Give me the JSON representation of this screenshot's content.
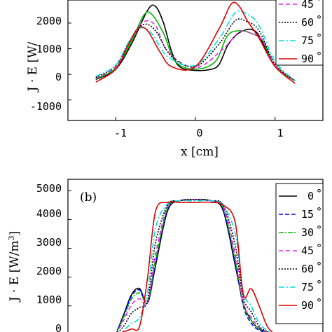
{
  "chart_data": [
    {
      "type": "line",
      "panel_label": "",
      "xlabel": "x [cm]",
      "ylabel": "J · E [W/",
      "xlim": [
        -1.6,
        1.6
      ],
      "ylim": [
        -1800,
        2900
      ],
      "xticks": [
        "-1",
        "0",
        "1"
      ],
      "yticks": [
        "-1000",
        "0",
        "1000",
        "2000"
      ],
      "legend_placement": "top-right",
      "series": [
        {
          "name": "0",
          "color": "#000000",
          "dash": "",
          "x": [
            -1.25,
            -1.0,
            -0.8,
            -0.6,
            -0.5,
            -0.4,
            -0.3,
            -0.2,
            0.0,
            0.2,
            0.3,
            0.4,
            0.5,
            0.6,
            0.7,
            0.8,
            1.0,
            1.25
          ],
          "y": [
            -200,
            200,
            1200,
            2500,
            2650,
            2000,
            900,
            300,
            150,
            200,
            400,
            1100,
            1500,
            1700,
            1750,
            1500,
            300,
            -250
          ]
        },
        {
          "name": "15",
          "color": "#0000ff",
          "dash": "6,3",
          "x": [],
          "y": []
        },
        {
          "name": "30",
          "color": "#00bb00",
          "dash": "",
          "x": [
            -1.25,
            -1.0,
            -0.8,
            -0.65,
            -0.55,
            -0.4,
            -0.25,
            0.0,
            0.25,
            0.4,
            0.55,
            0.7,
            0.85,
            1.0,
            1.25
          ],
          "y": [
            -180,
            250,
            1300,
            2300,
            2350,
            1600,
            500,
            200,
            500,
            1500,
            1700,
            1600,
            1300,
            300,
            -250
          ]
        },
        {
          "name": "45",
          "color": "#ee22ee",
          "dash": "6,4",
          "x": [
            -1.25,
            -1.0,
            -0.8,
            -0.65,
            -0.5,
            -0.35,
            0.0,
            0.35,
            0.55,
            0.7,
            0.85,
            1.0,
            1.25
          ],
          "y": [
            -150,
            300,
            1400,
            2050,
            1900,
            900,
            250,
            1000,
            1650,
            1600,
            1300,
            350,
            -250
          ]
        },
        {
          "name": "60",
          "color": "#000000",
          "dash": "2,2",
          "x": [
            -1.25,
            -1.0,
            -0.8,
            -0.65,
            -0.5,
            -0.3,
            0.0,
            0.3,
            0.5,
            0.65,
            0.8,
            1.0,
            1.25
          ],
          "y": [
            -120,
            350,
            1450,
            1950,
            1700,
            700,
            300,
            1200,
            2100,
            2050,
            1700,
            400,
            -250
          ]
        },
        {
          "name": "75",
          "color": "#00dddd",
          "dash": "8,3,2,3",
          "x": [
            -1.25,
            -1.0,
            -0.85,
            -0.7,
            -0.55,
            -0.35,
            0.0,
            0.3,
            0.5,
            0.65,
            0.8,
            1.0,
            1.25
          ],
          "y": [
            -80,
            350,
            1200,
            1800,
            1600,
            700,
            350,
            1400,
            2400,
            2350,
            1900,
            500,
            -250
          ]
        },
        {
          "name": "90",
          "color": "#dd0000",
          "dash": "",
          "x": [
            -1.25,
            -1.0,
            -0.85,
            -0.72,
            -0.6,
            -0.45,
            -0.3,
            0.0,
            0.3,
            0.45,
            0.55,
            0.65,
            0.8,
            1.0,
            1.25
          ],
          "y": [
            -300,
            200,
            1100,
            1800,
            1700,
            900,
            300,
            300,
            1800,
            2750,
            2650,
            2100,
            1400,
            300,
            -350
          ]
        }
      ]
    },
    {
      "type": "line",
      "panel_label": "(b)",
      "xlabel": "",
      "ylabel": "J · E [W/m",
      "ylabel_superscript": "3",
      "ylabel_close": "]",
      "xlim": [
        -1.6,
        1.6
      ],
      "ylim": [
        -200,
        5400
      ],
      "yticks": [
        "0",
        "1000",
        "2000",
        "3000",
        "4000",
        "5000"
      ],
      "legend_placement": "top-right",
      "series": [
        {
          "name": "0",
          "color": "#000000",
          "dash": "",
          "x": [
            -1.0,
            -0.9,
            -0.8,
            -0.7,
            -0.6,
            -0.5,
            -0.35,
            -0.2,
            0.0,
            0.2,
            0.35,
            0.5,
            0.6,
            0.7,
            0.8,
            0.9,
            1.0
          ],
          "y": [
            0,
            700,
            1400,
            1600,
            1100,
            2400,
            4300,
            4650,
            4700,
            4650,
            4300,
            2400,
            1100,
            500,
            200,
            100,
            0
          ]
        },
        {
          "name": "15",
          "color": "#0000ff",
          "dash": "6,3",
          "x": [
            -1.0,
            -0.9,
            -0.8,
            -0.7,
            -0.6,
            -0.5,
            -0.35,
            -0.2,
            0.0,
            0.2,
            0.35,
            0.5,
            0.6,
            0.7,
            0.8,
            0.9,
            1.0
          ],
          "y": [
            0,
            650,
            1350,
            1550,
            1100,
            2500,
            4350,
            4650,
            4700,
            4650,
            4350,
            2500,
            1000,
            400,
            150,
            80,
            0
          ]
        },
        {
          "name": "30",
          "color": "#00bb00",
          "dash": "7,2,2,2",
          "x": [
            -1.0,
            -0.9,
            -0.8,
            -0.7,
            -0.6,
            -0.5,
            -0.35,
            -0.2,
            0.0,
            0.2,
            0.35,
            0.5,
            0.6,
            0.7,
            0.8,
            0.9,
            1.0
          ],
          "y": [
            0,
            600,
            1250,
            1450,
            1150,
            2600,
            4400,
            4650,
            4700,
            4650,
            4400,
            2600,
            1050,
            500,
            200,
            80,
            0
          ]
        },
        {
          "name": "45",
          "color": "#ee22ee",
          "dash": "6,4",
          "x": [
            -1.0,
            -0.9,
            -0.8,
            -0.7,
            -0.6,
            -0.5,
            -0.35,
            -0.2,
            0.0,
            0.2,
            0.35,
            0.5,
            0.6,
            0.7,
            0.8,
            0.9,
            1.0
          ],
          "y": [
            0,
            500,
            1050,
            1250,
            1100,
            2800,
            4450,
            4650,
            4700,
            4650,
            4450,
            2800,
            1100,
            600,
            250,
            100,
            0
          ]
        },
        {
          "name": "60",
          "color": "#000000",
          "dash": "2,2",
          "x": [
            -1.0,
            -0.9,
            -0.8,
            -0.7,
            -0.6,
            -0.5,
            -0.35,
            -0.2,
            0.0,
            0.2,
            0.35,
            0.5,
            0.6,
            0.7,
            0.8,
            0.9,
            1.0
          ],
          "y": [
            0,
            300,
            750,
            950,
            1200,
            3200,
            4500,
            4650,
            4700,
            4650,
            4500,
            3100,
            1300,
            800,
            300,
            100,
            0
          ]
        },
        {
          "name": "75",
          "color": "#00dddd",
          "dash": "8,3,2,3",
          "x": [
            -1.0,
            -0.9,
            -0.8,
            -0.7,
            -0.6,
            -0.5,
            -0.35,
            -0.2,
            0.0,
            0.2,
            0.35,
            0.5,
            0.6,
            0.7,
            0.8,
            0.9,
            1.0
          ],
          "y": [
            0,
            150,
            400,
            600,
            1500,
            3700,
            4550,
            4650,
            4650,
            4650,
            4500,
            3500,
            1500,
            1000,
            400,
            150,
            0
          ]
        },
        {
          "name": "90",
          "color": "#dd0000",
          "dash": "",
          "x": [
            -1.0,
            -0.9,
            -0.8,
            -0.7,
            -0.6,
            -0.5,
            -0.35,
            -0.2,
            0.0,
            0.2,
            0.35,
            0.5,
            0.6,
            0.7,
            0.8,
            0.9,
            1.0
          ],
          "y": [
            0,
            100,
            200,
            300,
            2000,
            4300,
            4600,
            4600,
            4600,
            4600,
            4500,
            3900,
            1400,
            1600,
            1000,
            300,
            0
          ]
        }
      ]
    }
  ]
}
